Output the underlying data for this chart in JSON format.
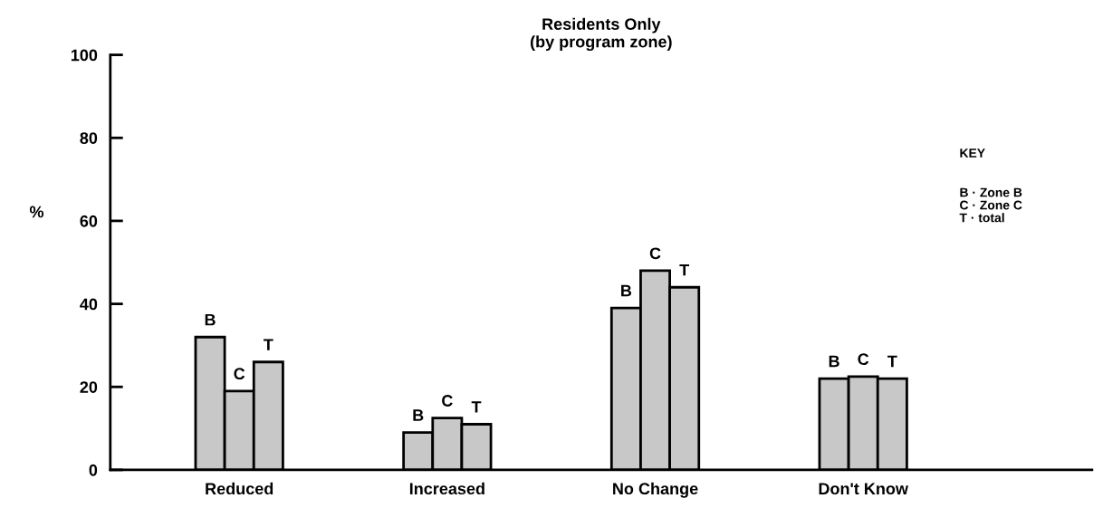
{
  "chart_data": {
    "type": "bar",
    "title": "Residents Only\n(by program zone)",
    "ylabel": "%",
    "categories": [
      "Reduced",
      "Increased",
      "No Change",
      "Don't Know"
    ],
    "series": [
      {
        "name": "B",
        "color": "#c8c8c8",
        "values": [
          32,
          9,
          39,
          22
        ]
      },
      {
        "name": "C",
        "color": "#c8c8c8",
        "values": [
          19,
          12.5,
          48,
          22.5
        ]
      },
      {
        "name": "T",
        "color": "#c8c8c8",
        "values": [
          26,
          11,
          44,
          22
        ]
      }
    ],
    "ylim": [
      0,
      100
    ],
    "yticks": [
      0,
      20,
      40,
      60,
      80,
      100
    ],
    "grid": false,
    "legend": false,
    "annotations": [
      "KEY",
      "B · Zone B\nC · Zone C\nT · total"
    ]
  }
}
